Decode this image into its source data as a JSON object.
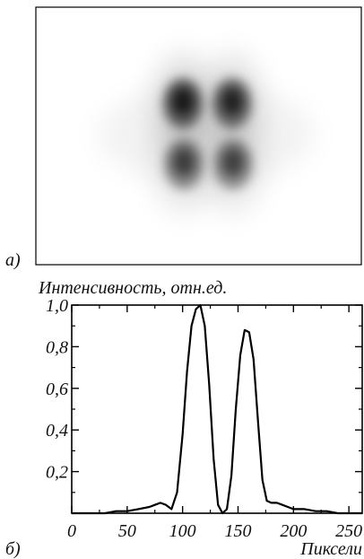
{
  "panel_a": {
    "label": "a)",
    "lobes": [
      {
        "name": "upper-left-lobe",
        "intensity": 1.0
      },
      {
        "name": "upper-right-lobe",
        "intensity": 0.92
      },
      {
        "name": "lower-left-lobe",
        "intensity": 0.72
      },
      {
        "name": "lower-right-lobe",
        "intensity": 0.7
      }
    ]
  },
  "panel_b": {
    "label": "б)"
  },
  "chart_data": {
    "type": "line",
    "ylabel": "Интенсивность, отн.ед.",
    "xlabel": "Пиксели",
    "xlim": [
      0,
      262
    ],
    "ylim": [
      0,
      1.0
    ],
    "x_ticks": [
      0,
      50,
      100,
      150,
      200,
      250
    ],
    "x_tick_labels": [
      "0",
      "50",
      "100",
      "150",
      "200",
      "250"
    ],
    "y_ticks": [
      0.2,
      0.4,
      0.6,
      0.8,
      1.0
    ],
    "y_tick_labels": [
      "0,2",
      "0,4",
      "0,6",
      "0,8",
      "1,0"
    ],
    "grid": false,
    "series": [
      {
        "values_x": [
          0,
          10,
          20,
          30,
          40,
          50,
          60,
          70,
          75,
          80,
          85,
          90,
          95,
          100,
          104,
          108,
          112,
          116,
          120,
          124,
          128,
          132,
          136,
          140,
          144,
          148,
          152,
          156,
          160,
          164,
          168,
          172,
          176,
          180,
          185,
          190,
          195,
          200,
          210,
          220,
          230,
          240,
          250,
          262
        ],
        "values_y": [
          0.0,
          0.0,
          0.0,
          0.0,
          0.01,
          0.01,
          0.02,
          0.03,
          0.04,
          0.05,
          0.04,
          0.02,
          0.1,
          0.38,
          0.68,
          0.9,
          0.98,
          1.0,
          0.9,
          0.62,
          0.26,
          0.04,
          0.0,
          0.02,
          0.18,
          0.5,
          0.76,
          0.88,
          0.87,
          0.74,
          0.44,
          0.16,
          0.06,
          0.05,
          0.05,
          0.04,
          0.03,
          0.02,
          0.02,
          0.01,
          0.01,
          0.0,
          0.0,
          0.0
        ]
      }
    ]
  }
}
